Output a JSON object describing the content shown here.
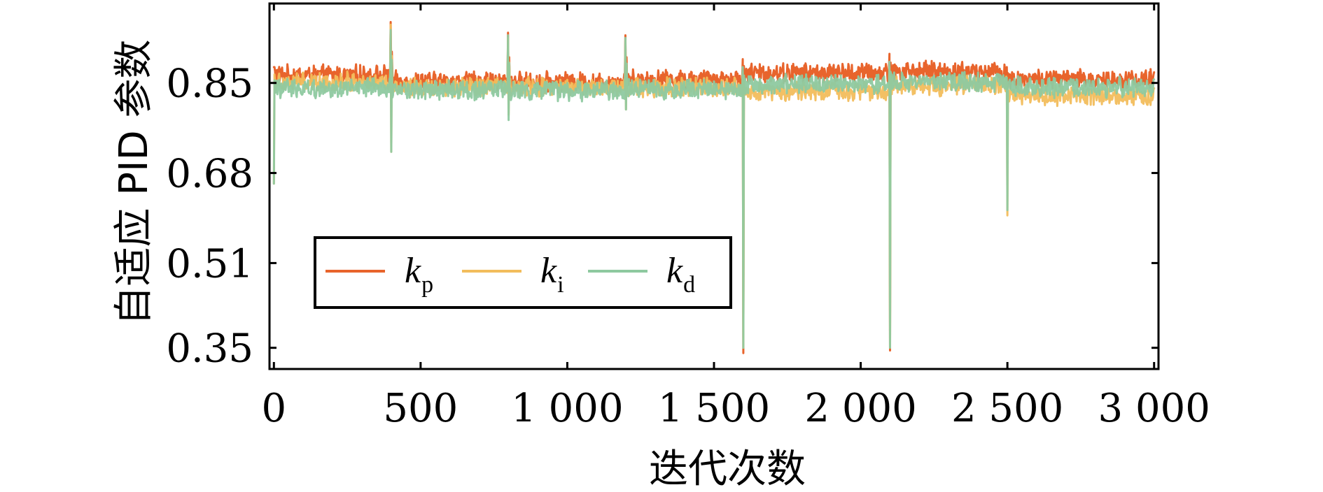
{
  "chart_data": {
    "type": "line",
    "xlabel": "迭代次数",
    "ylabel": "自适应 PID 参数",
    "xlim": [
      -15,
      3015
    ],
    "ylim": [
      0.31,
      1.0
    ],
    "x_ticks": [
      0,
      500,
      1000,
      1500,
      2000,
      2500,
      3000
    ],
    "x_tick_labels": [
      "0",
      "500",
      "1 000",
      "1 500",
      "2 000",
      "2 500",
      "3 000"
    ],
    "y_ticks": [
      0.35,
      0.51,
      0.68,
      0.85
    ],
    "y_tick_labels": [
      "0.35",
      "0.51",
      "0.68",
      "0.85"
    ],
    "grid": false,
    "legend_position": "center-left",
    "series": [
      {
        "name": "kp",
        "legend_main": "k",
        "legend_sub": "p",
        "color": "#e8642c",
        "segments": [
          {
            "from": 0,
            "to": 400,
            "level": 0.865
          },
          {
            "from": 400,
            "to": 800,
            "level": 0.853
          },
          {
            "from": 800,
            "to": 1200,
            "level": 0.852
          },
          {
            "from": 1200,
            "to": 1600,
            "level": 0.857
          },
          {
            "from": 1600,
            "to": 2100,
            "level": 0.869
          },
          {
            "from": 2100,
            "to": 2500,
            "level": 0.872
          },
          {
            "from": 2500,
            "to": 3000,
            "level": 0.857
          }
        ],
        "spikes": [
          {
            "x": 0,
            "min": 0.88,
            "max": 0.895
          },
          {
            "x": 400,
            "min": 0.87,
            "max": 0.965
          },
          {
            "x": 800,
            "min": 0.84,
            "max": 0.945
          },
          {
            "x": 1200,
            "min": 0.84,
            "max": 0.94
          },
          {
            "x": 1600,
            "min": 0.34,
            "max": 0.895
          },
          {
            "x": 2100,
            "min": 0.345,
            "max": 0.905
          },
          {
            "x": 2500,
            "min": 0.82,
            "max": 0.88
          }
        ]
      },
      {
        "name": "ki",
        "legend_main": "k",
        "legend_sub": "i",
        "color": "#f2bd5c",
        "segments": [
          {
            "from": 0,
            "to": 400,
            "level": 0.852
          },
          {
            "from": 400,
            "to": 800,
            "level": 0.842
          },
          {
            "from": 800,
            "to": 1200,
            "level": 0.842
          },
          {
            "from": 1200,
            "to": 1600,
            "level": 0.842
          },
          {
            "from": 1600,
            "to": 2100,
            "level": 0.835
          },
          {
            "from": 2100,
            "to": 2500,
            "level": 0.845
          },
          {
            "from": 2500,
            "to": 3000,
            "level": 0.826
          }
        ],
        "spikes": [
          {
            "x": 0,
            "min": 0.66,
            "max": 0.88
          },
          {
            "x": 400,
            "min": 0.72,
            "max": 0.96
          },
          {
            "x": 800,
            "min": 0.79,
            "max": 0.935
          },
          {
            "x": 1200,
            "min": 0.8,
            "max": 0.93
          },
          {
            "x": 1600,
            "min": 0.35,
            "max": 0.87
          },
          {
            "x": 2100,
            "min": 0.35,
            "max": 0.88
          },
          {
            "x": 2500,
            "min": 0.6,
            "max": 0.85
          }
        ]
      },
      {
        "name": "kd",
        "legend_main": "k",
        "legend_sub": "d",
        "color": "#8ec9a0",
        "segments": [
          {
            "from": 0,
            "to": 400,
            "level": 0.84
          },
          {
            "from": 400,
            "to": 800,
            "level": 0.837
          },
          {
            "from": 800,
            "to": 1200,
            "level": 0.835
          },
          {
            "from": 1200,
            "to": 1600,
            "level": 0.838
          },
          {
            "from": 1600,
            "to": 2100,
            "level": 0.848
          },
          {
            "from": 2100,
            "to": 2500,
            "level": 0.852
          },
          {
            "from": 2500,
            "to": 3000,
            "level": 0.842
          }
        ],
        "spikes": [
          {
            "x": 0,
            "min": 0.66,
            "max": 0.87
          },
          {
            "x": 400,
            "min": 0.72,
            "max": 0.95
          },
          {
            "x": 800,
            "min": 0.78,
            "max": 0.94
          },
          {
            "x": 1200,
            "min": 0.8,
            "max": 0.935
          },
          {
            "x": 1600,
            "min": 0.35,
            "max": 0.88
          },
          {
            "x": 2100,
            "min": 0.35,
            "max": 0.89
          },
          {
            "x": 2500,
            "min": 0.61,
            "max": 0.86
          }
        ]
      }
    ]
  }
}
